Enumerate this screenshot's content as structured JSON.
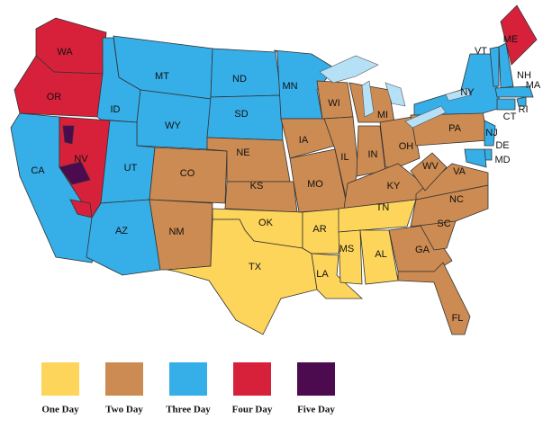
{
  "states": [
    {
      "label": "WA"
    },
    {
      "label": "OR"
    },
    {
      "label": "CA"
    },
    {
      "label": "NV"
    },
    {
      "label": "ID"
    },
    {
      "label": "MT"
    },
    {
      "label": "WY"
    },
    {
      "label": "UT"
    },
    {
      "label": "AZ"
    },
    {
      "label": "CO"
    },
    {
      "label": "NM"
    },
    {
      "label": "ND"
    },
    {
      "label": "SD"
    },
    {
      "label": "NE"
    },
    {
      "label": "KS"
    },
    {
      "label": "OK"
    },
    {
      "label": "TX"
    },
    {
      "label": "MN"
    },
    {
      "label": "IA"
    },
    {
      "label": "MO"
    },
    {
      "label": "AR"
    },
    {
      "label": "LA"
    },
    {
      "label": "WI"
    },
    {
      "label": "IL"
    },
    {
      "label": "MI"
    },
    {
      "label": "IN"
    },
    {
      "label": "OH"
    },
    {
      "label": "KY"
    },
    {
      "label": "TN"
    },
    {
      "label": "MS"
    },
    {
      "label": "AL"
    },
    {
      "label": "GA"
    },
    {
      "label": "FL"
    },
    {
      "label": "SC"
    },
    {
      "label": "NC"
    },
    {
      "label": "VA"
    },
    {
      "label": "WV"
    },
    {
      "label": "PA"
    },
    {
      "label": "NY"
    },
    {
      "label": "VT"
    },
    {
      "label": "NH"
    },
    {
      "label": "ME"
    },
    {
      "label": "MA"
    },
    {
      "label": "RI"
    },
    {
      "label": "CT"
    },
    {
      "label": "NJ"
    },
    {
      "label": "DE"
    },
    {
      "label": "MD"
    }
  ],
  "legend": [
    {
      "label": "One Day",
      "color": "#fdd55b"
    },
    {
      "label": "Two Day",
      "color": "#cc8b52"
    },
    {
      "label": "Three Day",
      "color": "#36aee8"
    },
    {
      "label": "Four Day",
      "color": "#d7213b"
    },
    {
      "label": "Five Day",
      "color": "#4c0a4f"
    }
  ]
}
